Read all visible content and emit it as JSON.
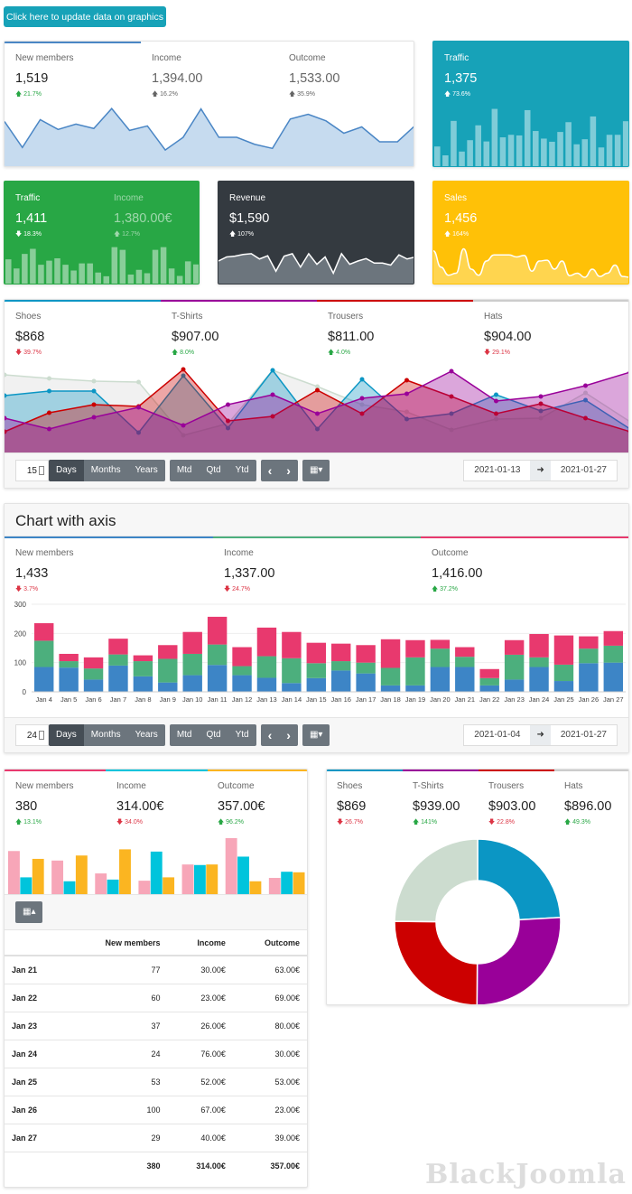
{
  "update_button": "Click here to update data on graphics",
  "card1": {
    "stats": [
      {
        "label": "New members",
        "value": "1,519",
        "delta": "21.7%",
        "dir": "up"
      },
      {
        "label": "Income",
        "value": "1,394.00",
        "delta": "16.2%",
        "dir": "up"
      },
      {
        "label": "Outcome",
        "value": "1,533.00",
        "delta": "35.9%",
        "dir": "up"
      }
    ]
  },
  "traffic_teal": {
    "label": "Traffic",
    "value": "1,375",
    "delta": "73.6%",
    "dir": "up"
  },
  "green_card": {
    "stats": [
      {
        "label": "Traffic",
        "value": "1,411",
        "delta": "18.3%",
        "dir": "down"
      },
      {
        "label": "Income",
        "value": "1,380.00€",
        "delta": "12.7%",
        "dir": "up"
      }
    ]
  },
  "revenue_card": {
    "label": "Revenue",
    "value": "$1,590",
    "delta": "107%",
    "dir": "up"
  },
  "sales_card": {
    "label": "Sales",
    "value": "1,456",
    "delta": "164%",
    "dir": "up"
  },
  "products": {
    "stats": [
      {
        "label": "Shoes",
        "value": "$868",
        "delta": "39.7%",
        "dir": "down"
      },
      {
        "label": "T-Shirts",
        "value": "$907.00",
        "delta": "8.0%",
        "dir": "up"
      },
      {
        "label": "Trousers",
        "value": "$811.00",
        "delta": "4.0%",
        "dir": "up"
      },
      {
        "label": "Hats",
        "value": "$904.00",
        "delta": "29.1%",
        "dir": "down"
      }
    ]
  },
  "toolbar1": {
    "count": "15",
    "days": "Days",
    "months": "Months",
    "years": "Years",
    "mtd": "Mtd",
    "qtd": "Qtd",
    "ytd": "Ytd",
    "prev": "‹",
    "next": "›",
    "from": "2021-01-13",
    "to": "2021-01-27",
    "arrow": "➜"
  },
  "axis_card": {
    "title": "Chart with axis",
    "stats": [
      {
        "label": "New members",
        "value": "1,433",
        "delta": "3.7%",
        "dir": "down"
      },
      {
        "label": "Income",
        "value": "1,337.00",
        "delta": "24.7%",
        "dir": "down"
      },
      {
        "label": "Outcome",
        "value": "1,416.00",
        "delta": "37.2%",
        "dir": "up"
      }
    ]
  },
  "toolbar2": {
    "count": "24",
    "days": "Days",
    "months": "Months",
    "years": "Years",
    "mtd": "Mtd",
    "qtd": "Qtd",
    "ytd": "Ytd",
    "prev": "‹",
    "next": "›",
    "from": "2021-01-04",
    "to": "2021-01-27",
    "arrow": "➜"
  },
  "table_card": {
    "stats": [
      {
        "label": "New members",
        "value": "380",
        "delta": "13.1%",
        "dir": "up"
      },
      {
        "label": "Income",
        "value": "314.00€",
        "delta": "34.0%",
        "dir": "down"
      },
      {
        "label": "Outcome",
        "value": "357.00€",
        "delta": "96.2%",
        "dir": "up"
      }
    ],
    "columns": [
      "",
      "New members",
      "Income",
      "Outcome"
    ],
    "rows": [
      [
        "Jan 21",
        "77",
        "30.00€",
        "63.00€"
      ],
      [
        "Jan 22",
        "60",
        "23.00€",
        "69.00€"
      ],
      [
        "Jan 23",
        "37",
        "26.00€",
        "80.00€"
      ],
      [
        "Jan 24",
        "24",
        "76.00€",
        "30.00€"
      ],
      [
        "Jan 25",
        "53",
        "52.00€",
        "53.00€"
      ],
      [
        "Jan 26",
        "100",
        "67.00€",
        "23.00€"
      ],
      [
        "Jan 27",
        "29",
        "40.00€",
        "39.00€"
      ]
    ],
    "totals": [
      "",
      "380",
      "314.00€",
      "357.00€"
    ]
  },
  "donut_card": {
    "stats": [
      {
        "label": "Shoes",
        "value": "$869",
        "delta": "26.7%",
        "dir": "down"
      },
      {
        "label": "T-Shirts",
        "value": "$939.00",
        "delta": "141%",
        "dir": "up"
      },
      {
        "label": "Trousers",
        "value": "$903.00",
        "delta": "22.8%",
        "dir": "down"
      },
      {
        "label": "Hats",
        "value": "$896.00",
        "delta": "49.3%",
        "dir": "up"
      }
    ]
  },
  "watermark": "BlackJoomla",
  "colors": {
    "teal": "#17a2b8",
    "green": "#28a745",
    "dark": "#343a40",
    "yellow": "#ffc107",
    "blue": "#4a86c5",
    "shoes": "#0b96c4",
    "tshirts": "#990099",
    "trousers": "#cc0000",
    "hats": "#ccdccf",
    "pink": "#e8396e",
    "sgreen": "#4caf7d",
    "sblue": "#3d85c6",
    "bpink": "#f7a6b8",
    "bcyan": "#00c4dc",
    "borange": "#fbb521"
  },
  "chart_data": [
    {
      "id": "members-area",
      "type": "area",
      "values": [
        147,
        65,
        153,
        122,
        139,
        125,
        188,
        119,
        133,
        57,
        97,
        187,
        97,
        97,
        75,
        62,
        155,
        170,
        149,
        110,
        130,
        83,
        83,
        135
      ],
      "ylim": [
        0,
        200
      ]
    },
    {
      "id": "traffic-bars",
      "type": "bar",
      "values": [
        68,
        40,
        149,
        52,
        88,
        135,
        84,
        187,
        97,
        105,
        103,
        183,
        117,
        93,
        83,
        114,
        145,
        75,
        91,
        163,
        65,
        105,
        105,
        148
      ],
      "ylim": [
        0,
        200
      ]
    },
    {
      "id": "green-bars",
      "type": "bar",
      "values": [
        77,
        50,
        93,
        108,
        61,
        73,
        80,
        61,
        44,
        65,
        65,
        38,
        27,
        113,
        105,
        32,
        46,
        36,
        105,
        113,
        50,
        28,
        71,
        62
      ],
      "ylim": [
        0,
        120
      ]
    },
    {
      "id": "revenue-line",
      "type": "area",
      "values": [
        60,
        70,
        72,
        76,
        78,
        65,
        73,
        35,
        72,
        78,
        45,
        78,
        52,
        70,
        30,
        78,
        52,
        60,
        66,
        55,
        55,
        50,
        75,
        65,
        70
      ],
      "ylim": [
        0,
        100
      ]
    },
    {
      "id": "sales-line",
      "type": "area",
      "values": [
        85,
        45,
        25,
        30,
        90,
        40,
        25,
        60,
        75,
        75,
        75,
        70,
        74,
        35,
        60,
        62,
        40,
        60,
        24,
        30,
        20,
        40,
        22,
        30,
        50,
        22,
        20
      ],
      "ylim": [
        0,
        100
      ]
    },
    {
      "id": "products-area",
      "type": "area",
      "x": [
        "2021-01-13",
        "2021-01-14",
        "2021-01-15",
        "2021-01-16",
        "2021-01-17",
        "2021-01-18",
        "2021-01-19",
        "2021-01-20",
        "2021-01-21",
        "2021-01-22",
        "2021-01-23",
        "2021-01-24",
        "2021-01-25",
        "2021-01-26",
        "2021-01-27"
      ],
      "series": [
        {
          "name": "Hats",
          "values": [
            86,
            82,
            79,
            78,
            19,
            32,
            91,
            73,
            53,
            45,
            25,
            37,
            38,
            66,
            34
          ]
        },
        {
          "name": "Shoes",
          "values": [
            63,
            68,
            68,
            22,
            85,
            27,
            91,
            26,
            81,
            37,
            43,
            64,
            46,
            58,
            26
          ]
        },
        {
          "name": "Trousers",
          "values": [
            23,
            44,
            53,
            51,
            92,
            35,
            40,
            69,
            43,
            80,
            62,
            43,
            54,
            38,
            23
          ]
        },
        {
          "name": "T-Shirts",
          "values": [
            38,
            26,
            39,
            50,
            30,
            53,
            64,
            43,
            60,
            65,
            90,
            57,
            62,
            74,
            89
          ]
        }
      ],
      "ylim": [
        0,
        100
      ]
    },
    {
      "id": "stacked-bars",
      "type": "bar",
      "stacked": true,
      "categories": [
        "Jan 4",
        "Jan 5",
        "Jan 6",
        "Jan 7",
        "Jan 8",
        "Jan 9",
        "Jan 10",
        "Jan 11",
        "Jan 12",
        "Jan 13",
        "Jan 14",
        "Jan 15",
        "Jan 16",
        "Jan 17",
        "Jan 18",
        "Jan 19",
        "Jan 20",
        "Jan 21",
        "Jan 22",
        "Jan 23",
        "Jan 24",
        "Jan 25",
        "Jan 26",
        "Jan 27"
      ],
      "series": [
        {
          "name": "New members",
          "values": [
            85,
            83,
            42,
            90,
            53,
            32,
            57,
            92,
            57,
            48,
            30,
            47,
            73,
            63,
            22,
            22,
            85,
            85,
            22,
            42,
            85,
            37,
            98,
            100
          ]
        },
        {
          "name": "Income",
          "values": [
            90,
            22,
            38,
            38,
            52,
            81,
            73,
            70,
            31,
            74,
            85,
            51,
            32,
            37,
            60,
            96,
            63,
            35,
            25,
            85,
            33,
            56,
            50,
            58
          ]
        },
        {
          "name": "Outcome",
          "values": [
            60,
            25,
            38,
            54,
            20,
            47,
            75,
            95,
            65,
            98,
            90,
            70,
            60,
            60,
            98,
            59,
            30,
            33,
            31,
            50,
            80,
            100,
            42,
            50
          ]
        }
      ],
      "yticks": [
        0,
        100,
        200,
        300
      ],
      "ylim": [
        0,
        300
      ]
    },
    {
      "id": "grouped-bars",
      "type": "bar",
      "categories": [
        "Jan 21",
        "Jan 22",
        "Jan 23",
        "Jan 24",
        "Jan 25",
        "Jan 26",
        "Jan 27"
      ],
      "series": [
        {
          "name": "New members",
          "values": [
            77,
            60,
            37,
            24,
            53,
            100,
            29
          ]
        },
        {
          "name": "Income",
          "values": [
            30,
            23,
            26,
            76,
            52,
            67,
            40
          ]
        },
        {
          "name": "Outcome",
          "values": [
            63,
            69,
            80,
            30,
            53,
            23,
            39
          ]
        }
      ],
      "ylim": [
        0,
        100
      ]
    },
    {
      "id": "donut",
      "type": "pie",
      "labels": [
        "Shoes",
        "T-Shirts",
        "Trousers",
        "Hats"
      ],
      "values": [
        869,
        939,
        903,
        896
      ]
    }
  ]
}
